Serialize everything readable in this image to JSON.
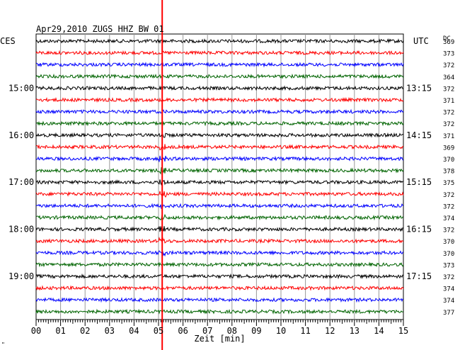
{
  "chart_data": {
    "type": "line",
    "title": "Apr29,2010   ZUGS HHZ BW 01",
    "left_zone_label": "CES",
    "right_zone_label": "UTC",
    "dc_label": "DC",
    "xlabel": "Zeit [min]",
    "xlim": [
      0,
      15
    ],
    "x_ticks": [
      "00",
      "01",
      "02",
      "03",
      "04",
      "05",
      "06",
      "07",
      "08",
      "09",
      "10",
      "11",
      "12",
      "13",
      "14",
      "15"
    ],
    "traces_per_hour": 4,
    "minutes_per_trace": 15,
    "trace_colors": [
      "#000000",
      "#ff0000",
      "#0000ff",
      "#006400"
    ],
    "left_hour_labels": [
      {
        "trace_index": 4,
        "text": "15:00"
      },
      {
        "trace_index": 8,
        "text": "16:00"
      },
      {
        "trace_index": 12,
        "text": "17:00"
      },
      {
        "trace_index": 16,
        "text": "18:00"
      },
      {
        "trace_index": 20,
        "text": "19:00"
      }
    ],
    "right_hour_labels": [
      {
        "trace_index": 4,
        "text": "13:15"
      },
      {
        "trace_index": 8,
        "text": "14:15"
      },
      {
        "trace_index": 12,
        "text": "15:15"
      },
      {
        "trace_index": 16,
        "text": "16:15"
      },
      {
        "trace_index": 20,
        "text": "17:15"
      }
    ],
    "dc_offsets": [
      369,
      373,
      372,
      364,
      372,
      371,
      372,
      372,
      371,
      369,
      370,
      378,
      375,
      372,
      372,
      374,
      372,
      370,
      370,
      373,
      372,
      374,
      374,
      377
    ],
    "marker": {
      "x_minute": 5.15,
      "color": "#ff0000"
    }
  },
  "corner_mark": "\""
}
